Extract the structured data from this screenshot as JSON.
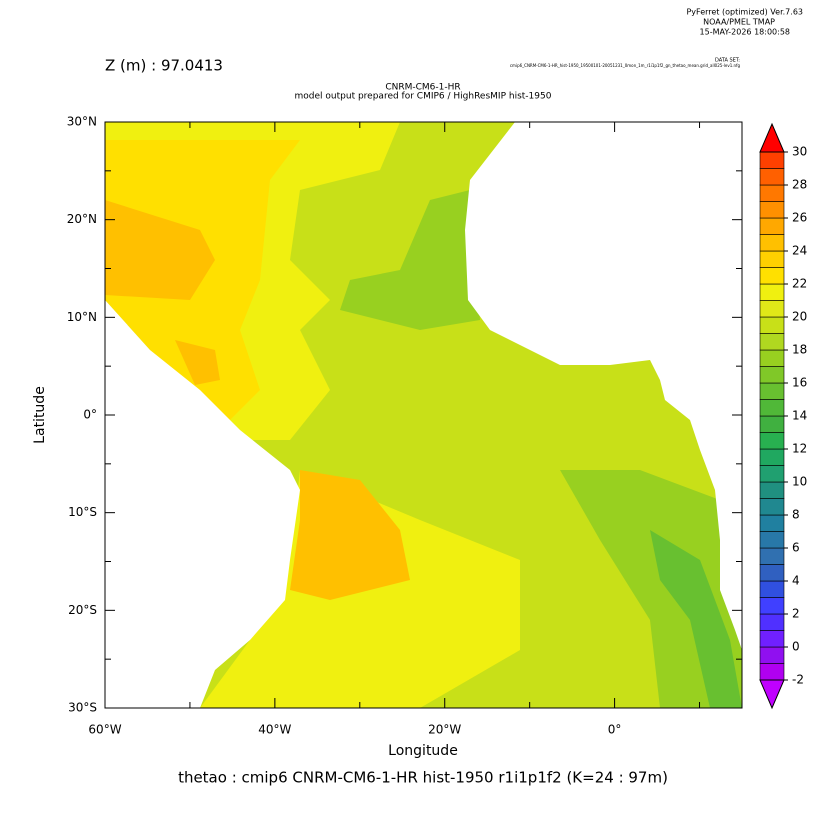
{
  "header": {
    "software": "PyFerret (optimized) Ver.7.63",
    "org": "NOAA/PMEL TMAP",
    "date": "15-MAY-2026 18:00:58",
    "dataset_label": "DATA SET:",
    "dataset": "cmip6_CNRM-CM6-1-HR_hist-1950_19500101-20051231_0mon_1m_r1i1p1f2_gn_thetao_mean.grid_all025-lev1.nfg"
  },
  "chart_data": {
    "type": "contour",
    "title": "CNRM-CM6-1-HR",
    "subtitle": "model output prepared for CMIP6 / HighResMIP hist-1950",
    "depth_label": "Z (m) : 97.0413",
    "x_label": "Longitude",
    "y_label": "Latitude",
    "caption": "thetao : cmip6 CNRM-CM6-1-HR hist-1950 r1i1p1f2   (K=24 : 97m)",
    "xlim": [
      -60,
      15
    ],
    "ylim": [
      -30,
      30
    ],
    "xticks": [
      {
        "value": -60,
        "label": "60°W"
      },
      {
        "value": -40,
        "label": "40°W"
      },
      {
        "value": -20,
        "label": "20°W"
      },
      {
        "value": 0,
        "label": "0°"
      }
    ],
    "xminor": [
      -50,
      -30,
      -10,
      10
    ],
    "yticks": [
      {
        "value": 30,
        "label": "30°N"
      },
      {
        "value": 20,
        "label": "20°N"
      },
      {
        "value": 10,
        "label": "10°N"
      },
      {
        "value": 0,
        "label": "0°"
      },
      {
        "value": -10,
        "label": "10°S"
      },
      {
        "value": -20,
        "label": "20°S"
      },
      {
        "value": -30,
        "label": "30°S"
      }
    ],
    "yminor": [
      25,
      15,
      5,
      -5,
      -15,
      -25
    ],
    "colorbar": {
      "levels": [
        -2,
        -1,
        0,
        1,
        2,
        3,
        4,
        5,
        6,
        7,
        8,
        9,
        10,
        11,
        12,
        13,
        14,
        15,
        16,
        17,
        18,
        19,
        20,
        21,
        22,
        23,
        24,
        25,
        26,
        27,
        28,
        29,
        30
      ],
      "ticks": [
        -2,
        0,
        2,
        4,
        6,
        8,
        10,
        12,
        14,
        16,
        18,
        20,
        22,
        24,
        26,
        28,
        30
      ],
      "colors": [
        "#b000f0",
        "#9010f0",
        "#7020ff",
        "#5030ff",
        "#4040ff",
        "#3050e0",
        "#3060c0",
        "#3070b0",
        "#2878a8",
        "#2080a0",
        "#208890",
        "#209080",
        "#20a070",
        "#20a860",
        "#28b050",
        "#40b040",
        "#50b838",
        "#68c030",
        "#80c828",
        "#98d020",
        "#b0d820",
        "#c8e018",
        "#e0e818",
        "#f0f010",
        "#ffe000",
        "#ffd000",
        "#ffc000",
        "#ffa800",
        "#ff9000",
        "#ff7800",
        "#ff6000",
        "#ff4000"
      ],
      "under_color": "#c000ff",
      "over_color": "#ff0000"
    }
  }
}
